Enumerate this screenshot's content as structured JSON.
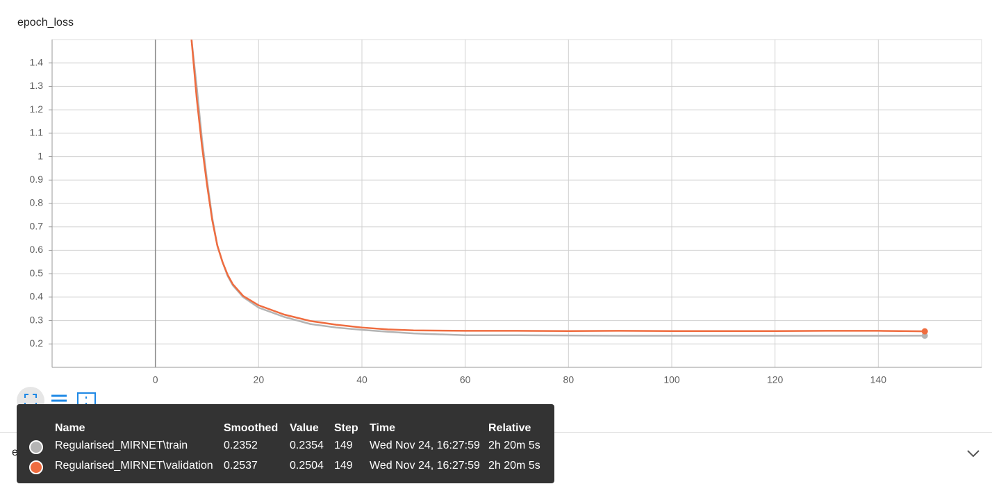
{
  "card_title": "epoch_loss",
  "chart_data": {
    "type": "line",
    "x": [
      7,
      8,
      9,
      10,
      11,
      12,
      13,
      14,
      15,
      17,
      20,
      25,
      30,
      35,
      40,
      45,
      50,
      60,
      70,
      80,
      90,
      100,
      110,
      120,
      130,
      140,
      149
    ],
    "series": [
      {
        "name": "Regularised_MIRNET\\train",
        "color": "#b4b4b4",
        "values": [
          1.5,
          1.3,
          1.08,
          0.9,
          0.74,
          0.62,
          0.55,
          0.49,
          0.45,
          0.4,
          0.355,
          0.315,
          0.285,
          0.27,
          0.26,
          0.252,
          0.245,
          0.237,
          0.237,
          0.236,
          0.235,
          0.235,
          0.235,
          0.235,
          0.235,
          0.235,
          0.2352
        ]
      },
      {
        "name": "Regularised_MIRNET\\validation",
        "color": "#ef6c3f",
        "values": [
          1.5,
          1.25,
          1.05,
          0.88,
          0.73,
          0.62,
          0.55,
          0.495,
          0.455,
          0.405,
          0.365,
          0.325,
          0.298,
          0.282,
          0.27,
          0.262,
          0.258,
          0.256,
          0.256,
          0.255,
          0.256,
          0.255,
          0.255,
          0.255,
          0.256,
          0.256,
          0.2537
        ]
      }
    ],
    "xlim": [
      -20,
      160
    ],
    "ylim": [
      0.1,
      1.5
    ],
    "xticks": [
      0,
      20,
      40,
      60,
      80,
      100,
      120,
      140
    ],
    "yticks": [
      0.2,
      0.3,
      0.4,
      0.5,
      0.6,
      0.7,
      0.8,
      0.9,
      1,
      1.1,
      1.2,
      1.3,
      1.4
    ],
    "grid": true
  },
  "tooltip": {
    "columns": [
      "Name",
      "Smoothed",
      "Value",
      "Step",
      "Time",
      "Relative"
    ],
    "rows": [
      [
        "Regularised_MIRNET\\train",
        0.2352,
        0.2354,
        149,
        "Wed Nov 24, 16:27:59",
        "2h 20m 5s"
      ],
      [
        "Regularised_MIRNET\\validation",
        0.2537,
        0.2504,
        149,
        "Wed Nov 24, 16:27:59",
        "2h 20m 5s"
      ]
    ]
  },
  "collapsed_card_title": "epoch_lr"
}
